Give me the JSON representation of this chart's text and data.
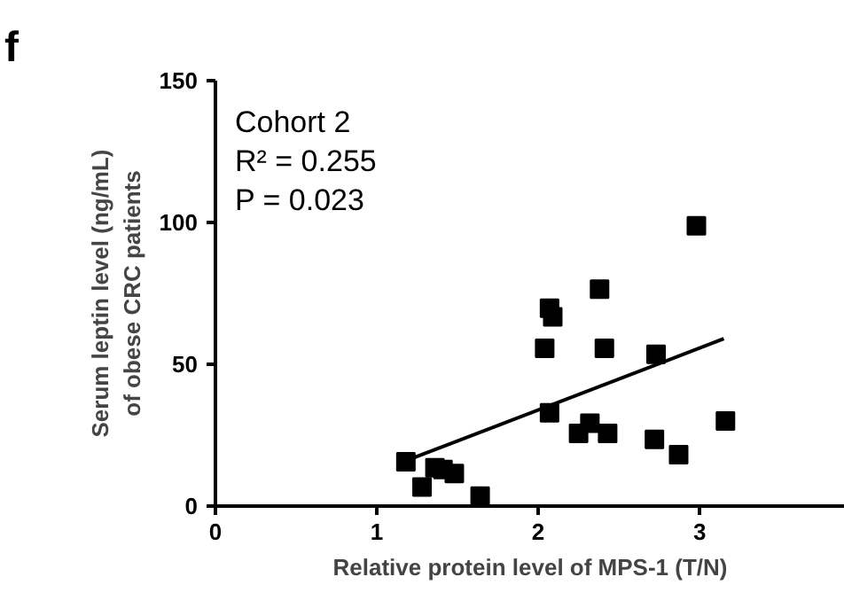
{
  "chart_data": {
    "type": "scatter",
    "xlabel": "Relative protein level of MPS-1 (T/N)",
    "ylabel": "Serum leptin level (ng/mL)\nof obese CRC patients",
    "xlim": [
      0,
      3.9
    ],
    "ylim": [
      0,
      150
    ],
    "xticks": [
      0,
      1,
      2,
      3
    ],
    "yticks": [
      0,
      50,
      100,
      150
    ],
    "grid": false,
    "annotations": [
      "f",
      "Cohort 2",
      "R² = 0.255",
      "P = 0.023"
    ],
    "series": [
      {
        "marker": "square",
        "color": "#000000",
        "x": [
          1.18,
          1.28,
          1.36,
          1.41,
          1.48,
          1.64,
          2.04,
          2.07,
          2.09,
          2.07,
          2.25,
          2.32,
          2.38,
          2.41,
          2.43,
          2.73,
          2.72,
          2.87,
          2.98,
          3.16
        ],
        "values": [
          15.6,
          6.7,
          13.5,
          12.9,
          11.5,
          3.5,
          55.6,
          69.8,
          66.7,
          32.9,
          25.6,
          29.2,
          76.5,
          55.6,
          25.6,
          53.5,
          23.5,
          18.1,
          98.8,
          30
        ]
      },
      {
        "type": "line",
        "color": "#000000",
        "x": [
          1.18,
          3.15
        ],
        "values": [
          16,
          59
        ]
      }
    ]
  }
}
